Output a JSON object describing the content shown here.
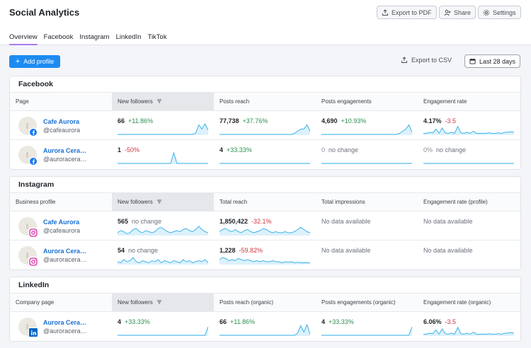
{
  "header": {
    "title": "Social Analytics",
    "export_pdf": "Export to PDF",
    "share": "Share",
    "settings": "Settings"
  },
  "tabs": [
    "Overview",
    "Facebook",
    "Instagram",
    "LinkedIn",
    "TikTok"
  ],
  "toolbar": {
    "add_profile": "Add profile",
    "export_csv": "Export to CSV",
    "date_range": "Last 28 days"
  },
  "colors": {
    "accent": "#1d8bf1",
    "tab_underline": "#a77bf3",
    "positive": "#2c8f4f",
    "negative": "#d0343f",
    "spark": "#3db3e8"
  },
  "sections": [
    {
      "title": "Facebook",
      "network": "facebook",
      "columns": [
        "Page",
        "New followers",
        "Posts reach",
        "Posts engagements",
        "Engagement rate"
      ],
      "sorted_column": 1,
      "rows": [
        {
          "name": "Cafe Aurora",
          "handle": "@cafeaurora",
          "metrics": [
            {
              "value": "66",
              "change": "+11.86%",
              "trend": "up",
              "spark": [
                0,
                0,
                0,
                0,
                0,
                0,
                0,
                0,
                0,
                0,
                0,
                0,
                0,
                0,
                0,
                0,
                0,
                0,
                0,
                0,
                0,
                0,
                0,
                0,
                0,
                0.1,
                0.9,
                0.5,
                1.0,
                0.4
              ]
            },
            {
              "value": "77,738",
              "change": "+37.76%",
              "trend": "up",
              "spark": [
                0,
                0,
                0,
                0,
                0,
                0,
                0,
                0,
                0,
                0,
                0,
                0,
                0,
                0,
                0,
                0,
                0,
                0,
                0,
                0,
                0,
                0,
                0,
                0,
                0.1,
                0.3,
                0.5,
                0.5,
                0.9,
                0.3
              ]
            },
            {
              "value": "4,690",
              "change": "+10.93%",
              "trend": "up",
              "spark": [
                0,
                0,
                0,
                0,
                0,
                0,
                0,
                0,
                0,
                0,
                0,
                0,
                0,
                0,
                0,
                0,
                0,
                0,
                0,
                0,
                0,
                0,
                0,
                0,
                0,
                0.1,
                0.3,
                0.5,
                0.9,
                0.2
              ]
            },
            {
              "value": "4.17%",
              "change": "-3.5",
              "trend": "down",
              "spark": [
                0.1,
                0.1,
                0.2,
                0.15,
                0.5,
                0.1,
                0.6,
                0.15,
                0.1,
                0.2,
                0.1,
                0.75,
                0.15,
                0.1,
                0.2,
                0.1,
                0.3,
                0.1,
                0.1,
                0.1,
                0.1,
                0.15,
                0.1,
                0.1,
                0.15,
                0.1,
                0.2,
                0.2,
                0.25,
                0.2
              ]
            }
          ]
        },
        {
          "name": "Aurora Cera…",
          "handle": "@auroracera…",
          "metrics": [
            {
              "value": "1",
              "change": "-50%",
              "trend": "down",
              "spark": [
                0,
                0,
                0,
                0,
                0,
                0,
                0,
                0,
                0,
                0,
                0,
                0,
                0,
                0,
                0,
                0,
                0,
                0,
                1.0,
                0,
                0,
                0,
                0,
                0,
                0,
                0,
                0,
                0,
                0,
                0
              ]
            },
            {
              "value": "4",
              "change": "+33.33%",
              "trend": "up",
              "spark": [
                0,
                0,
                0,
                0,
                0,
                0,
                0,
                0,
                0,
                0,
                0,
                0,
                0,
                0,
                0,
                0,
                0,
                0,
                0,
                0,
                0,
                0,
                0,
                0,
                0,
                0,
                0,
                0,
                0,
                0
              ]
            },
            {
              "value": "0",
              "change": "no change",
              "trend": "zero",
              "spark": [
                0,
                0,
                0,
                0,
                0,
                0,
                0,
                0,
                0,
                0,
                0,
                0,
                0,
                0,
                0,
                0,
                0,
                0,
                0,
                0,
                0,
                0,
                0,
                0,
                0,
                0,
                0,
                0,
                0,
                0
              ]
            },
            {
              "value": "0%",
              "change": "no change",
              "trend": "zero",
              "spark": [
                0,
                0,
                0,
                0,
                0,
                0,
                0,
                0,
                0,
                0,
                0,
                0,
                0,
                0,
                0,
                0,
                0,
                0,
                0,
                0,
                0,
                0,
                0,
                0,
                0,
                0,
                0,
                0,
                0,
                0
              ]
            }
          ]
        }
      ]
    },
    {
      "title": "Instagram",
      "network": "instagram",
      "columns": [
        "Business profile",
        "New followers",
        "Total reach",
        "Total impressions",
        "Engagement rate (profile)"
      ],
      "sorted_column": 1,
      "rows": [
        {
          "name": "Cafe Aurora",
          "handle": "@cafeaurora",
          "metrics": [
            {
              "value": "565",
              "change": "no change",
              "trend": "none",
              "spark": [
                0.2,
                0.4,
                0.3,
                0.1,
                0.2,
                0.5,
                0.6,
                0.3,
                0.2,
                0.4,
                0.3,
                0.2,
                0.3,
                0.6,
                0.7,
                0.5,
                0.3,
                0.2,
                0.3,
                0.4,
                0.3,
                0.5,
                0.6,
                0.4,
                0.3,
                0.5,
                0.8,
                0.5,
                0.3,
                0.2
              ]
            },
            {
              "value": "1,850,422",
              "change": "-32.1%",
              "trend": "down",
              "spark": [
                0.3,
                0.5,
                0.6,
                0.4,
                0.3,
                0.5,
                0.3,
                0.2,
                0.4,
                0.5,
                0.3,
                0.2,
                0.3,
                0.4,
                0.6,
                0.5,
                0.3,
                0.2,
                0.3,
                0.2,
                0.2,
                0.3,
                0.2,
                0.2,
                0.3,
                0.5,
                0.7,
                0.5,
                0.3,
                0.2
              ]
            },
            {
              "value": "",
              "change": "No data available",
              "trend": "nodata",
              "spark": null
            },
            {
              "value": "",
              "change": "No data available",
              "trend": "nodata",
              "spark": null
            }
          ]
        },
        {
          "name": "Aurora Cera…",
          "handle": "@auroracera…",
          "metrics": [
            {
              "value": "54",
              "change": "no change",
              "trend": "none",
              "spark": [
                0.2,
                0.1,
                0.4,
                0.2,
                0.3,
                0.6,
                0.2,
                0.1,
                0.3,
                0.2,
                0.1,
                0.3,
                0.2,
                0.4,
                0.1,
                0.3,
                0.2,
                0.1,
                0.3,
                0.2,
                0.1,
                0.4,
                0.2,
                0.3,
                0.1,
                0.2,
                0.3,
                0.2,
                0.4,
                0.1
              ]
            },
            {
              "value": "1,228",
              "change": "-59.82%",
              "trend": "down",
              "spark": [
                0.4,
                0.6,
                0.5,
                0.3,
                0.4,
                0.3,
                0.5,
                0.4,
                0.3,
                0.4,
                0.3,
                0.2,
                0.3,
                0.2,
                0.3,
                0.2,
                0.2,
                0.3,
                0.2,
                0.2,
                0.1,
                0.2,
                0.15,
                0.2,
                0.1,
                0.15,
                0.1,
                0.1,
                0.1,
                0.1
              ]
            },
            {
              "value": "",
              "change": "No data available",
              "trend": "nodata",
              "spark": null
            },
            {
              "value": "",
              "change": "No data available",
              "trend": "nodata",
              "spark": null
            }
          ]
        }
      ]
    },
    {
      "title": "LinkedIn",
      "network": "linkedin",
      "columns": [
        "Company page",
        "New followers",
        "Posts reach (organic)",
        "Posts engagements (organic)",
        "Engagement rate (organic)"
      ],
      "sorted_column": 1,
      "rows": [
        {
          "name": "Aurora Cera…",
          "handle": "@auroracera…",
          "metrics": [
            {
              "value": "4",
              "change": "+33.33%",
              "trend": "up",
              "spark": [
                0,
                0,
                0,
                0,
                0,
                0,
                0,
                0,
                0,
                0,
                0,
                0,
                0,
                0,
                0,
                0,
                0,
                0,
                0,
                0,
                0,
                0,
                0,
                0,
                0,
                0,
                0,
                0,
                0,
                0.8
              ]
            },
            {
              "value": "66",
              "change": "+11.86%",
              "trend": "up",
              "spark": [
                0,
                0,
                0,
                0,
                0,
                0,
                0,
                0,
                0,
                0,
                0,
                0,
                0,
                0,
                0,
                0,
                0,
                0,
                0,
                0,
                0,
                0,
                0,
                0,
                0,
                0.2,
                0.9,
                0.3,
                1.0,
                0.1
              ]
            },
            {
              "value": "4",
              "change": "+33.33%",
              "trend": "up",
              "spark": [
                0,
                0,
                0,
                0,
                0,
                0,
                0,
                0,
                0,
                0,
                0,
                0,
                0,
                0,
                0,
                0,
                0,
                0,
                0,
                0,
                0,
                0,
                0,
                0,
                0,
                0,
                0,
                0,
                0,
                0.8
              ]
            },
            {
              "value": "6.06%",
              "change": "-3.5",
              "trend": "down",
              "spark": [
                0.1,
                0.1,
                0.2,
                0.15,
                0.5,
                0.1,
                0.6,
                0.15,
                0.1,
                0.2,
                0.1,
                0.75,
                0.15,
                0.1,
                0.2,
                0.1,
                0.3,
                0.1,
                0.1,
                0.1,
                0.1,
                0.15,
                0.1,
                0.1,
                0.15,
                0.1,
                0.2,
                0.2,
                0.25,
                0.2
              ]
            }
          ]
        }
      ]
    }
  ]
}
